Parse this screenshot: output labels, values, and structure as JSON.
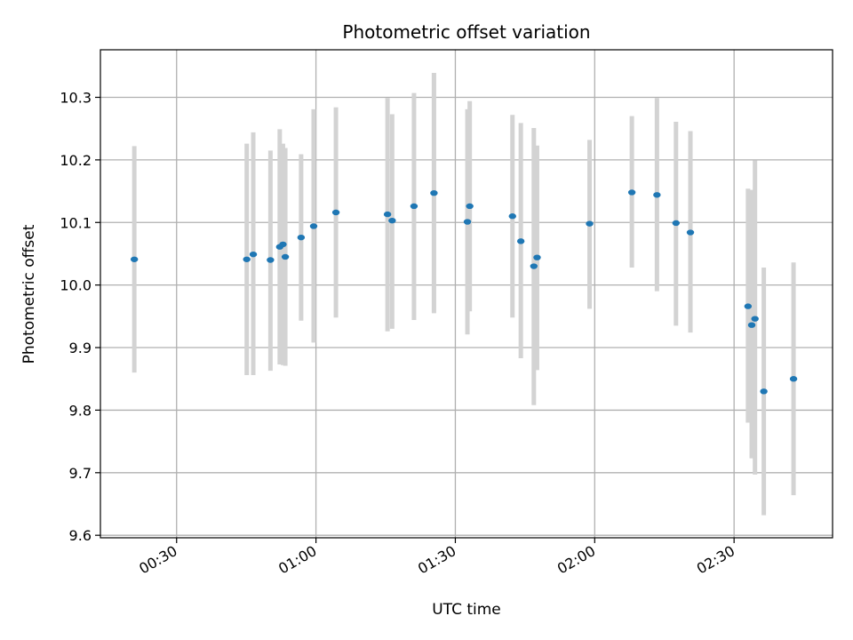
{
  "chart_data": {
    "type": "scatter",
    "title": "Photometric offset variation",
    "xlabel": "UTC time",
    "ylabel": "Photometric offset",
    "grid": true,
    "x_unit": "minutes",
    "xlim": [
      13.6,
      171.2
    ],
    "ylim": [
      9.596,
      10.376
    ],
    "x_ticks": [
      {
        "value": 30,
        "label": "00:30"
      },
      {
        "value": 60,
        "label": "01:00"
      },
      {
        "value": 90,
        "label": "01:30"
      },
      {
        "value": 120,
        "label": "02:00"
      },
      {
        "value": 150,
        "label": "02:30"
      }
    ],
    "y_ticks": [
      9.6,
      9.7,
      9.8,
      9.9,
      10.0,
      10.1,
      10.2,
      10.3
    ],
    "marker_color": "#1f77b4",
    "errorbar_color": "#d3d3d3",
    "points": [
      {
        "x": 20.9,
        "y": 10.041,
        "ylo": 9.86,
        "yhi": 10.222
      },
      {
        "x": 45.1,
        "y": 10.041,
        "ylo": 9.856,
        "yhi": 10.226
      },
      {
        "x": 46.5,
        "y": 10.049,
        "ylo": 9.856,
        "yhi": 10.244
      },
      {
        "x": 50.2,
        "y": 10.04,
        "ylo": 9.863,
        "yhi": 10.215
      },
      {
        "x": 52.2,
        "y": 10.061,
        "ylo": 9.873,
        "yhi": 10.249
      },
      {
        "x": 52.9,
        "y": 10.065,
        "ylo": 9.872,
        "yhi": 10.226
      },
      {
        "x": 53.4,
        "y": 10.045,
        "ylo": 9.871,
        "yhi": 10.219
      },
      {
        "x": 56.8,
        "y": 10.076,
        "ylo": 9.943,
        "yhi": 10.209
      },
      {
        "x": 59.5,
        "y": 10.094,
        "ylo": 9.908,
        "yhi": 10.281
      },
      {
        "x": 64.3,
        "y": 10.116,
        "ylo": 9.948,
        "yhi": 10.284
      },
      {
        "x": 75.4,
        "y": 10.113,
        "ylo": 9.926,
        "yhi": 10.299
      },
      {
        "x": 76.4,
        "y": 10.103,
        "ylo": 9.93,
        "yhi": 10.273
      },
      {
        "x": 81.1,
        "y": 10.126,
        "ylo": 9.944,
        "yhi": 10.307
      },
      {
        "x": 85.4,
        "y": 10.147,
        "ylo": 9.955,
        "yhi": 10.339
      },
      {
        "x": 92.6,
        "y": 10.101,
        "ylo": 9.921,
        "yhi": 10.281
      },
      {
        "x": 93.1,
        "y": 10.126,
        "ylo": 9.958,
        "yhi": 10.294
      },
      {
        "x": 102.3,
        "y": 10.11,
        "ylo": 9.948,
        "yhi": 10.272
      },
      {
        "x": 104.1,
        "y": 10.07,
        "ylo": 9.883,
        "yhi": 10.259
      },
      {
        "x": 106.9,
        "y": 10.03,
        "ylo": 9.808,
        "yhi": 10.251
      },
      {
        "x": 107.6,
        "y": 10.044,
        "ylo": 9.864,
        "yhi": 10.223
      },
      {
        "x": 118.9,
        "y": 10.098,
        "ylo": 9.962,
        "yhi": 10.232
      },
      {
        "x": 128.0,
        "y": 10.148,
        "ylo": 10.028,
        "yhi": 10.27
      },
      {
        "x": 133.4,
        "y": 10.144,
        "ylo": 9.99,
        "yhi": 10.299
      },
      {
        "x": 137.5,
        "y": 10.099,
        "ylo": 9.935,
        "yhi": 10.261
      },
      {
        "x": 140.6,
        "y": 10.084,
        "ylo": 9.924,
        "yhi": 10.246
      },
      {
        "x": 153.0,
        "y": 9.966,
        "ylo": 9.78,
        "yhi": 10.154
      },
      {
        "x": 153.8,
        "y": 9.936,
        "ylo": 9.723,
        "yhi": 10.152
      },
      {
        "x": 154.5,
        "y": 9.946,
        "ylo": 9.697,
        "yhi": 10.199
      },
      {
        "x": 156.4,
        "y": 9.83,
        "ylo": 9.632,
        "yhi": 10.028
      },
      {
        "x": 162.8,
        "y": 9.85,
        "ylo": 9.664,
        "yhi": 10.036
      }
    ]
  }
}
